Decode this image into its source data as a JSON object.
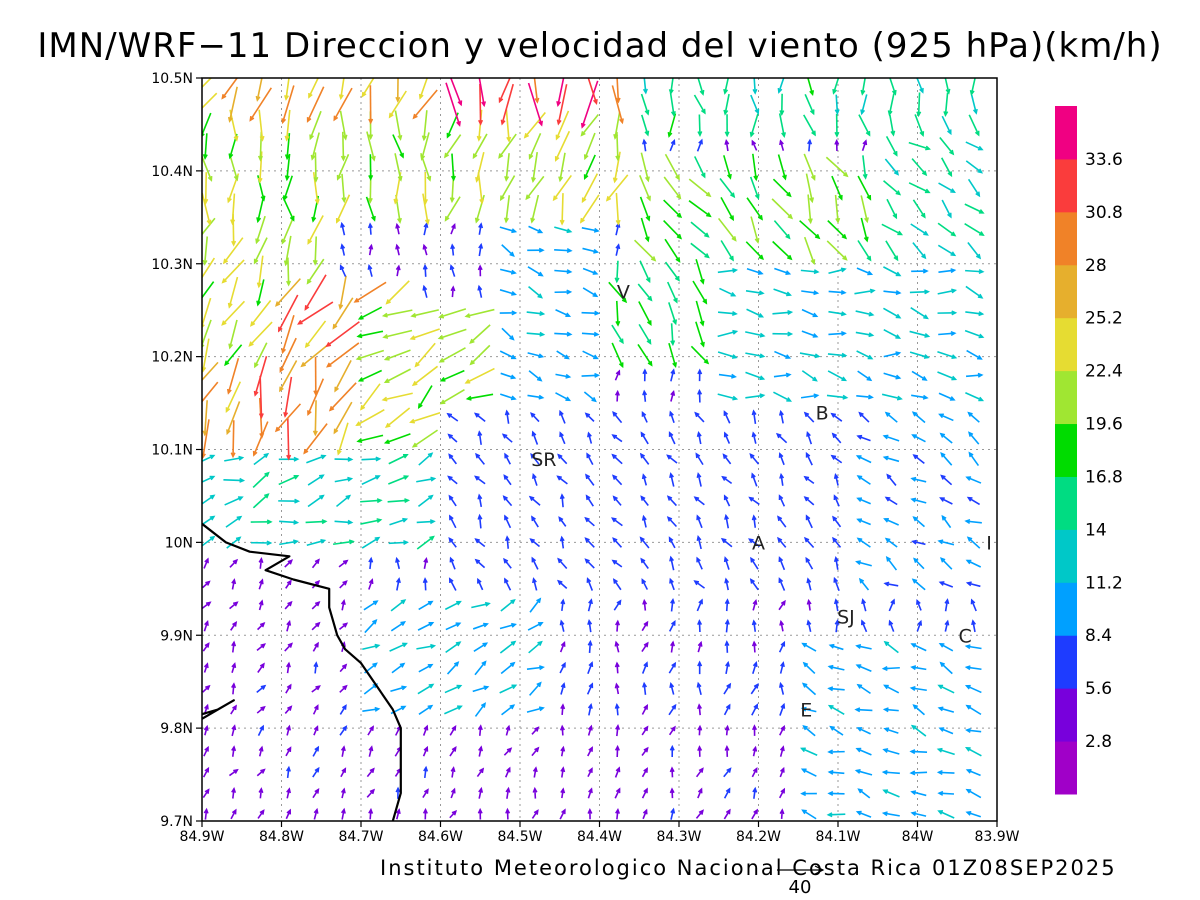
{
  "title": "IMN/WRF−11 Direccion y velocidad del viento (925 hPa)(km/h)",
  "footer": "Instituto Meteorologico Nacional Costa Rica 01Z08SEP2025",
  "reference_vector": {
    "value": "40"
  },
  "lon_ticks": [
    "84.9W",
    "84.8W",
    "84.7W",
    "84.6W",
    "84.5W",
    "84.4W",
    "84.3W",
    "84.2W",
    "84.1W",
    "84W",
    "83.9W"
  ],
  "lat_ticks": [
    "10.5N",
    "10.4N",
    "10.3N",
    "10.2N",
    "10.1N",
    "10N",
    "9.9N",
    "9.8N",
    "9.7N"
  ],
  "bounds": {
    "lon_min": -84.9,
    "lon_max": -83.9,
    "lat_min": 9.7,
    "lat_max": 10.5
  },
  "colorbar": {
    "labels": [
      "2.8",
      "5.6",
      "8.4",
      "11.2",
      "14",
      "16.8",
      "19.6",
      "22.4",
      "25.2",
      "28",
      "30.8",
      "33.6"
    ],
    "colors": [
      "#a000c8",
      "#7800dc",
      "#1e3cff",
      "#00a0ff",
      "#00c8c8",
      "#00dc82",
      "#00dc00",
      "#a0e632",
      "#e6dc32",
      "#e6af2d",
      "#f08228",
      "#fa3c3c",
      "#f00082"
    ]
  },
  "cities": [
    {
      "label": "V",
      "lon": -84.37,
      "lat": 10.27
    },
    {
      "label": "B",
      "lon": -84.12,
      "lat": 10.14
    },
    {
      "label": "SR",
      "lon": -84.47,
      "lat": 10.09
    },
    {
      "label": "A",
      "lon": -84.2,
      "lat": 10.0
    },
    {
      "label": "I",
      "lon": -83.91,
      "lat": 10.0
    },
    {
      "label": "SJ",
      "lon": -84.09,
      "lat": 9.92
    },
    {
      "label": "C",
      "lon": -83.94,
      "lat": 9.9
    },
    {
      "label": "E",
      "lon": -84.14,
      "lat": 9.82
    }
  ],
  "coastline": [
    [
      [
        -84.9,
        10.02
      ],
      [
        -84.87,
        10.0
      ],
      [
        -84.84,
        9.99
      ],
      [
        -84.79,
        9.985
      ],
      [
        -84.8,
        9.98
      ],
      [
        -84.82,
        9.97
      ],
      [
        -84.785,
        9.96
      ],
      [
        -84.74,
        9.95
      ],
      [
        -84.74,
        9.93
      ],
      [
        -84.73,
        9.9
      ],
      [
        -84.72,
        9.885
      ],
      [
        -84.7,
        9.87
      ],
      [
        -84.68,
        9.845
      ],
      [
        -84.66,
        9.82
      ],
      [
        -84.65,
        9.8
      ],
      [
        -84.65,
        9.76
      ],
      [
        -84.65,
        9.73
      ],
      [
        -84.66,
        9.7
      ]
    ],
    [
      [
        -84.9,
        9.81
      ],
      [
        -84.86,
        9.83
      ],
      [
        -84.88,
        9.82
      ],
      [
        -84.9,
        9.815
      ]
    ]
  ],
  "wind_regions": [
    {
      "lon": [
        -84.6,
        -84.35
      ],
      "lat": [
        10.45,
        10.5
      ],
      "speed": 34,
      "dir": 180
    },
    {
      "lon": [
        -84.9,
        -84.6
      ],
      "lat": [
        10.45,
        10.5
      ],
      "speed": 27,
      "dir": 200
    },
    {
      "lon": [
        -84.35,
        -83.9
      ],
      "lat": [
        10.44,
        10.5
      ],
      "speed": 15,
      "dir": 175
    },
    {
      "lon": [
        -84.9,
        -84.6
      ],
      "lat": [
        10.35,
        10.45
      ],
      "speed": 21,
      "dir": 180
    },
    {
      "lon": [
        -84.6,
        -84.35
      ],
      "lat": [
        10.35,
        10.45
      ],
      "speed": 22,
      "dir": 195
    },
    {
      "lon": [
        -84.35,
        -84.05
      ],
      "lat": [
        10.3,
        10.42
      ],
      "speed": 19,
      "dir": 150
    },
    {
      "lon": [
        -84.05,
        -83.9
      ],
      "lat": [
        10.3,
        10.44
      ],
      "speed": 14,
      "dir": 130
    },
    {
      "lon": [
        -84.9,
        -84.75
      ],
      "lat": [
        10.2,
        10.35
      ],
      "speed": 22,
      "dir": 200
    },
    {
      "lon": [
        -84.8,
        -84.65
      ],
      "lat": [
        10.15,
        10.28
      ],
      "speed": 28,
      "dir": 215
    },
    {
      "lon": [
        -84.9,
        -84.7
      ],
      "lat": [
        10.1,
        10.2
      ],
      "speed": 29,
      "dir": 200
    },
    {
      "lon": [
        -84.7,
        -84.55
      ],
      "lat": [
        10.08,
        10.25
      ],
      "speed": 21,
      "dir": 235
    },
    {
      "lon": [
        -84.55,
        -84.4
      ],
      "lat": [
        10.15,
        10.35
      ],
      "speed": 10,
      "dir": 110
    },
    {
      "lon": [
        -84.4,
        -84.25
      ],
      "lat": [
        10.18,
        10.3
      ],
      "speed": 17,
      "dir": 160
    },
    {
      "lon": [
        -84.25,
        -83.9
      ],
      "lat": [
        10.15,
        10.3
      ],
      "speed": 12,
      "dir": 100
    },
    {
      "lon": [
        -84.9,
        -84.6
      ],
      "lat": [
        9.98,
        10.1
      ],
      "speed": 13,
      "dir": 70
    },
    {
      "lon": [
        -84.6,
        -84.1
      ],
      "lat": [
        9.95,
        10.15
      ],
      "speed": 7,
      "dir": 330
    },
    {
      "lon": [
        -84.1,
        -83.9
      ],
      "lat": [
        9.95,
        10.15
      ],
      "speed": 9,
      "dir": 300
    },
    {
      "lon": [
        -84.9,
        -84.7
      ],
      "lat": [
        9.7,
        9.98
      ],
      "speed": 5,
      "dir": 30
    },
    {
      "lon": [
        -84.7,
        -84.45
      ],
      "lat": [
        9.78,
        9.95
      ],
      "speed": 11,
      "dir": 60
    },
    {
      "lon": [
        -84.45,
        -84.15
      ],
      "lat": [
        9.8,
        9.95
      ],
      "speed": 6,
      "dir": 10
    },
    {
      "lon": [
        -84.15,
        -83.9
      ],
      "lat": [
        9.7,
        9.9
      ],
      "speed": 10,
      "dir": 290
    },
    {
      "lon": [
        -84.7,
        -84.15
      ],
      "lat": [
        9.7,
        9.8
      ],
      "speed": 5,
      "dir": 20
    }
  ]
}
